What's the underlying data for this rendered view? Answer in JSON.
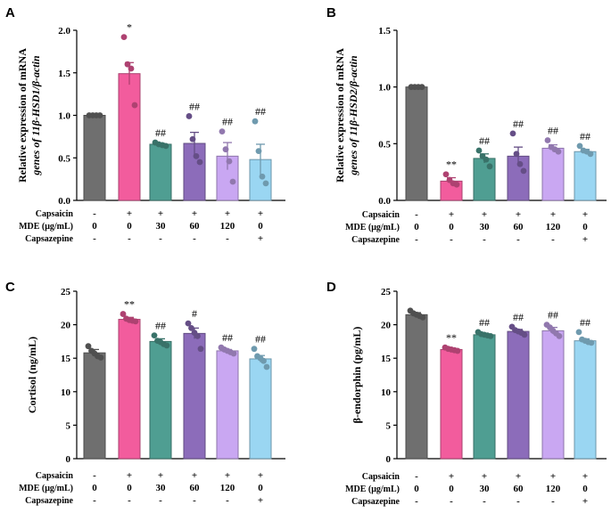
{
  "chart_data": [
    {
      "panel": "A",
      "type": "bar",
      "ylabel_lines": [
        "Relative expression of mRNA",
        "genes of 11β-HSD1/β-actin"
      ],
      "ylim": [
        0,
        2.0
      ],
      "yticks": [
        "0.0",
        "0.5",
        "1.0",
        "1.5",
        "2.0"
      ],
      "ytick_values": [
        0,
        0.5,
        1.0,
        1.5,
        2.0
      ],
      "groups": [
        {
          "value": 1.0,
          "err": 0.0,
          "points": [
            1.0,
            1.0,
            1.0,
            1.0
          ],
          "sig": "",
          "color": "#6f6f6f"
        },
        {
          "value": 1.49,
          "err": 0.13,
          "points": [
            1.92,
            1.6,
            1.55,
            1.12
          ],
          "sig": "*",
          "color": "#f25c9d"
        },
        {
          "value": 0.66,
          "err": 0.01,
          "points": [
            0.68,
            0.66,
            0.65,
            0.64
          ],
          "sig": "##",
          "color": "#4f9e92"
        },
        {
          "value": 0.67,
          "err": 0.13,
          "points": [
            0.99,
            0.72,
            0.52,
            0.45
          ],
          "sig": "##",
          "color": "#8c6cba"
        },
        {
          "value": 0.52,
          "err": 0.16,
          "points": [
            0.81,
            0.6,
            0.46,
            0.22
          ],
          "sig": "##",
          "color": "#c9a7f2"
        },
        {
          "value": 0.48,
          "err": 0.18,
          "points": [
            0.93,
            0.58,
            0.28,
            0.2
          ],
          "sig": "##",
          "color": "#9ad6f2"
        }
      ]
    },
    {
      "panel": "B",
      "type": "bar",
      "ylabel_lines": [
        "Relative expression of mRNA",
        "genes of 11β-HSD2/β-actin"
      ],
      "ylim": [
        0,
        1.5
      ],
      "yticks": [
        "0.0",
        "0.5",
        "1.0",
        "1.5"
      ],
      "ytick_values": [
        0,
        0.5,
        1.0,
        1.5
      ],
      "groups": [
        {
          "value": 1.0,
          "err": 0.0,
          "points": [
            1.0,
            1.0,
            1.0,
            1.0
          ],
          "sig": "",
          "color": "#6f6f6f"
        },
        {
          "value": 0.17,
          "err": 0.03,
          "points": [
            0.23,
            0.18,
            0.15,
            0.14
          ],
          "sig": "**",
          "color": "#f25c9d"
        },
        {
          "value": 0.37,
          "err": 0.04,
          "points": [
            0.44,
            0.39,
            0.36,
            0.3
          ],
          "sig": "##",
          "color": "#4f9e92"
        },
        {
          "value": 0.39,
          "err": 0.08,
          "points": [
            0.59,
            0.41,
            0.32,
            0.26
          ],
          "sig": "##",
          "color": "#8c6cba"
        },
        {
          "value": 0.46,
          "err": 0.03,
          "points": [
            0.53,
            0.47,
            0.45,
            0.43
          ],
          "sig": "##",
          "color": "#c9a7f2"
        },
        {
          "value": 0.43,
          "err": 0.02,
          "points": [
            0.48,
            0.44,
            0.43,
            0.41
          ],
          "sig": "##",
          "color": "#9ad6f2"
        }
      ]
    },
    {
      "panel": "C",
      "type": "bar",
      "ylabel_lines": [
        "Cortisol (ng/mL)"
      ],
      "ylim": [
        0,
        25
      ],
      "yticks": [
        "0",
        "5",
        "10",
        "15",
        "20",
        "25"
      ],
      "ytick_values": [
        0,
        5,
        10,
        15,
        20,
        25
      ],
      "groups": [
        {
          "value": 15.8,
          "err": 0.5,
          "points": [
            16.8,
            16.1,
            15.7,
            15.3,
            15.1
          ],
          "sig": "",
          "color": "#6f6f6f"
        },
        {
          "value": 20.8,
          "err": 0.3,
          "points": [
            21.6,
            20.9,
            20.7,
            20.6,
            20.5
          ],
          "sig": "**",
          "color": "#f25c9d"
        },
        {
          "value": 17.5,
          "err": 0.4,
          "points": [
            18.4,
            17.6,
            17.4,
            17.1,
            16.9
          ],
          "sig": "##",
          "color": "#4f9e92"
        },
        {
          "value": 18.7,
          "err": 0.8,
          "points": [
            20.2,
            19.5,
            18.8,
            18.3,
            16.4
          ],
          "sig": "#",
          "color": "#8c6cba"
        },
        {
          "value": 16.1,
          "err": 0.2,
          "points": [
            16.6,
            16.3,
            16.1,
            15.9,
            15.7
          ],
          "sig": "##",
          "color": "#c9a7f2"
        },
        {
          "value": 14.9,
          "err": 0.5,
          "points": [
            16.4,
            15.3,
            15.0,
            14.6,
            13.7
          ],
          "sig": "##",
          "color": "#9ad6f2"
        }
      ]
    },
    {
      "panel": "D",
      "type": "bar",
      "ylabel_lines": [
        "β-endorphin (pg/mL)"
      ],
      "ylim": [
        0,
        25
      ],
      "yticks": [
        "0",
        "5",
        "10",
        "15",
        "20",
        "25"
      ],
      "ytick_values": [
        0,
        5,
        10,
        15,
        20,
        25
      ],
      "groups": [
        {
          "value": 21.5,
          "err": 0.3,
          "points": [
            22.1,
            21.7,
            21.5,
            21.3,
            21.1
          ],
          "sig": "",
          "color": "#6f6f6f"
        },
        {
          "value": 16.3,
          "err": 0.2,
          "points": [
            16.6,
            16.4,
            16.3,
            16.2,
            16.1
          ],
          "sig": "**",
          "color": "#f25c9d"
        },
        {
          "value": 18.5,
          "err": 0.2,
          "points": [
            18.9,
            18.6,
            18.5,
            18.4,
            18.3
          ],
          "sig": "##",
          "color": "#4f9e92"
        },
        {
          "value": 19.0,
          "err": 0.3,
          "points": [
            19.7,
            19.2,
            19.0,
            18.8,
            18.5
          ],
          "sig": "##",
          "color": "#8c6cba"
        },
        {
          "value": 19.1,
          "err": 0.5,
          "points": [
            20.0,
            19.6,
            19.1,
            18.7,
            18.3
          ],
          "sig": "##",
          "color": "#c9a7f2"
        },
        {
          "value": 17.6,
          "err": 0.3,
          "points": [
            18.9,
            17.8,
            17.6,
            17.4,
            17.3
          ],
          "sig": "##",
          "color": "#9ad6f2"
        }
      ]
    }
  ],
  "conditions": {
    "rows": [
      {
        "label": "Capsaicin",
        "values": [
          "-",
          "+",
          "+",
          "+",
          "+",
          "+"
        ]
      },
      {
        "label": "MDE (μg/mL)",
        "values": [
          "0",
          "0",
          "30",
          "60",
          "120",
          "0"
        ]
      },
      {
        "label": "Capsazepine",
        "values": [
          "-",
          "-",
          "-",
          "-",
          "-",
          "+"
        ]
      }
    ]
  }
}
